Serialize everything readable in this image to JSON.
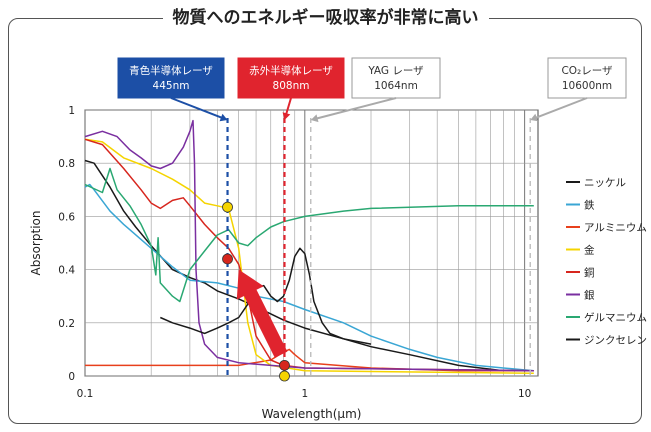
{
  "page_title": "物質へのエネルギー吸収率が非常に高い",
  "chart_data": {
    "type": "line",
    "title": "物質へのエネルギー吸収率が非常に高い",
    "xlabel": "Wavelength(μm)",
    "ylabel": "Absorption",
    "xscale": "log",
    "xlim": [
      0.1,
      11.5
    ],
    "ylim": [
      0,
      1
    ],
    "x_ticks": [
      0.1,
      1,
      10
    ],
    "x_tick_labels": [
      "0.1",
      "1",
      "10"
    ],
    "y_ticks": [
      0,
      0.2,
      0.4,
      0.6,
      0.8,
      1
    ],
    "y_tick_labels": [
      "0",
      "0.2",
      "0.4",
      "0.6",
      "0.8",
      "1"
    ],
    "grid": true,
    "legend_position": "right",
    "series": [
      {
        "name": "ニッケル",
        "color": "#1a1a1a",
        "width": 1.5,
        "points": [
          [
            0.1,
            0.81
          ],
          [
            0.11,
            0.8
          ],
          [
            0.13,
            0.71
          ],
          [
            0.15,
            0.62
          ],
          [
            0.17,
            0.56
          ],
          [
            0.2,
            0.49
          ],
          [
            0.25,
            0.4
          ],
          [
            0.3,
            0.37
          ],
          [
            0.35,
            0.35
          ],
          [
            0.4,
            0.32
          ],
          [
            0.5,
            0.29
          ],
          [
            0.6,
            0.26
          ],
          [
            0.8,
            0.21
          ],
          [
            1.0,
            0.18
          ],
          [
            1.5,
            0.14
          ],
          [
            2.0,
            0.11
          ],
          [
            3.0,
            0.08
          ],
          [
            5.0,
            0.04
          ],
          [
            8.0,
            0.02
          ],
          [
            11.0,
            0.02
          ]
        ]
      },
      {
        "name": "鉄",
        "color": "#3aa6d4",
        "width": 1.5,
        "points": [
          [
            0.1,
            0.71
          ],
          [
            0.105,
            0.72
          ],
          [
            0.11,
            0.7
          ],
          [
            0.13,
            0.62
          ],
          [
            0.15,
            0.57
          ],
          [
            0.2,
            0.48
          ],
          [
            0.25,
            0.41
          ],
          [
            0.3,
            0.36
          ],
          [
            0.4,
            0.35
          ],
          [
            0.5,
            0.33
          ],
          [
            0.6,
            0.3
          ],
          [
            0.8,
            0.28
          ],
          [
            1.0,
            0.25
          ],
          [
            1.5,
            0.2
          ],
          [
            2.0,
            0.15
          ],
          [
            3.0,
            0.1
          ],
          [
            4.0,
            0.07
          ],
          [
            6.0,
            0.04
          ],
          [
            8.0,
            0.03
          ],
          [
            11.0,
            0.02
          ]
        ]
      },
      {
        "name": "アルミニウム",
        "color": "#e8401c",
        "width": 1.5,
        "points": [
          [
            0.1,
            0.04
          ],
          [
            0.2,
            0.04
          ],
          [
            0.3,
            0.04
          ],
          [
            0.5,
            0.04
          ],
          [
            0.7,
            0.06
          ],
          [
            0.8,
            0.09
          ],
          [
            0.85,
            0.1
          ],
          [
            0.9,
            0.08
          ],
          [
            1.0,
            0.05
          ],
          [
            2.0,
            0.03
          ],
          [
            5.0,
            0.02
          ],
          [
            11.0,
            0.02
          ]
        ]
      },
      {
        "name": "金",
        "color": "#f5d400",
        "width": 1.5,
        "points": [
          [
            0.1,
            0.89
          ],
          [
            0.12,
            0.88
          ],
          [
            0.15,
            0.82
          ],
          [
            0.2,
            0.78
          ],
          [
            0.25,
            0.74
          ],
          [
            0.3,
            0.7
          ],
          [
            0.35,
            0.65
          ],
          [
            0.4,
            0.64
          ],
          [
            0.45,
            0.63
          ],
          [
            0.5,
            0.48
          ],
          [
            0.55,
            0.2
          ],
          [
            0.6,
            0.08
          ],
          [
            0.7,
            0.04
          ],
          [
            1.0,
            0.02
          ],
          [
            11.0,
            0.01
          ]
        ]
      },
      {
        "name": "銅",
        "color": "#d7261e",
        "width": 1.5,
        "points": [
          [
            0.1,
            0.89
          ],
          [
            0.12,
            0.87
          ],
          [
            0.15,
            0.78
          ],
          [
            0.18,
            0.7
          ],
          [
            0.2,
            0.65
          ],
          [
            0.22,
            0.63
          ],
          [
            0.25,
            0.66
          ],
          [
            0.28,
            0.67
          ],
          [
            0.3,
            0.64
          ],
          [
            0.35,
            0.57
          ],
          [
            0.4,
            0.52
          ],
          [
            0.45,
            0.48
          ],
          [
            0.5,
            0.42
          ],
          [
            0.55,
            0.3
          ],
          [
            0.6,
            0.15
          ],
          [
            0.7,
            0.06
          ],
          [
            0.8,
            0.04
          ],
          [
            1.0,
            0.03
          ],
          [
            11.0,
            0.02
          ]
        ]
      },
      {
        "name": "銀",
        "color": "#7a2fa0",
        "width": 1.5,
        "points": [
          [
            0.1,
            0.9
          ],
          [
            0.12,
            0.92
          ],
          [
            0.14,
            0.9
          ],
          [
            0.16,
            0.85
          ],
          [
            0.18,
            0.82
          ],
          [
            0.2,
            0.79
          ],
          [
            0.22,
            0.78
          ],
          [
            0.25,
            0.8
          ],
          [
            0.28,
            0.86
          ],
          [
            0.3,
            0.92
          ],
          [
            0.31,
            0.96
          ],
          [
            0.315,
            0.8
          ],
          [
            0.32,
            0.4
          ],
          [
            0.33,
            0.2
          ],
          [
            0.35,
            0.12
          ],
          [
            0.4,
            0.07
          ],
          [
            0.5,
            0.05
          ],
          [
            0.7,
            0.04
          ],
          [
            1.0,
            0.03
          ],
          [
            11.0,
            0.02
          ]
        ]
      },
      {
        "name": "ゲルマニウム",
        "color": "#2aa872",
        "width": 1.5,
        "points": [
          [
            0.1,
            0.72
          ],
          [
            0.12,
            0.69
          ],
          [
            0.13,
            0.78
          ],
          [
            0.14,
            0.7
          ],
          [
            0.16,
            0.64
          ],
          [
            0.18,
            0.57
          ],
          [
            0.2,
            0.49
          ],
          [
            0.21,
            0.38
          ],
          [
            0.215,
            0.52
          ],
          [
            0.22,
            0.35
          ],
          [
            0.25,
            0.3
          ],
          [
            0.27,
            0.28
          ],
          [
            0.3,
            0.4
          ],
          [
            0.35,
            0.47
          ],
          [
            0.4,
            0.53
          ],
          [
            0.45,
            0.55
          ],
          [
            0.5,
            0.5
          ],
          [
            0.55,
            0.49
          ],
          [
            0.6,
            0.52
          ],
          [
            0.7,
            0.56
          ],
          [
            0.8,
            0.58
          ],
          [
            1.0,
            0.6
          ],
          [
            1.5,
            0.62
          ],
          [
            2.0,
            0.63
          ],
          [
            5.0,
            0.64
          ],
          [
            11.0,
            0.64
          ]
        ]
      },
      {
        "name": "ジンクセレン",
        "color": "#1a1a1a",
        "width": 1.5,
        "points": [
          [
            0.22,
            0.22
          ],
          [
            0.25,
            0.2
          ],
          [
            0.3,
            0.18
          ],
          [
            0.35,
            0.16
          ],
          [
            0.4,
            0.18
          ],
          [
            0.45,
            0.2
          ],
          [
            0.5,
            0.22
          ],
          [
            0.55,
            0.27
          ],
          [
            0.6,
            0.33
          ],
          [
            0.65,
            0.34
          ],
          [
            0.7,
            0.3
          ],
          [
            0.75,
            0.28
          ],
          [
            0.8,
            0.3
          ],
          [
            0.85,
            0.36
          ],
          [
            0.9,
            0.45
          ],
          [
            0.95,
            0.48
          ],
          [
            1.0,
            0.46
          ],
          [
            1.05,
            0.38
          ],
          [
            1.1,
            0.28
          ],
          [
            1.2,
            0.2
          ],
          [
            1.3,
            0.16
          ],
          [
            1.5,
            0.14
          ],
          [
            2.0,
            0.12
          ]
        ]
      }
    ],
    "laser_lines": [
      {
        "label": [
          "青色半導体レーザ",
          "445nm"
        ],
        "x": 0.445,
        "color": "#1c4fa6",
        "text_color": "#ffffff",
        "style": "dashed"
      },
      {
        "label": [
          "赤外半導体レーザ",
          "808nm"
        ],
        "x": 0.808,
        "color": "#e0242e",
        "text_color": "#ffffff",
        "style": "dashed"
      },
      {
        "label": [
          "YAG レーザ",
          "1064nm"
        ],
        "x": 1.064,
        "color": "#bdbdbd",
        "text_color": "#333333",
        "style": "dashed"
      },
      {
        "label": [
          "CO₂レーザ",
          "10600nm"
        ],
        "x": 10.6,
        "color": "#bdbdbd",
        "text_color": "#333333",
        "style": "dashed"
      }
    ],
    "markers": [
      {
        "x": 0.445,
        "y": 0.635,
        "color": "#f5d400"
      },
      {
        "x": 0.445,
        "y": 0.44,
        "color": "#d7261e"
      },
      {
        "x": 0.808,
        "y": 0.04,
        "color": "#d7261e"
      },
      {
        "x": 0.808,
        "y": 0.0,
        "color": "#f5d400"
      }
    ],
    "highlight_arrow": {
      "from": [
        0.78,
        0.08
      ],
      "to": [
        0.5,
        0.4
      ],
      "color": "#e0242e"
    }
  }
}
